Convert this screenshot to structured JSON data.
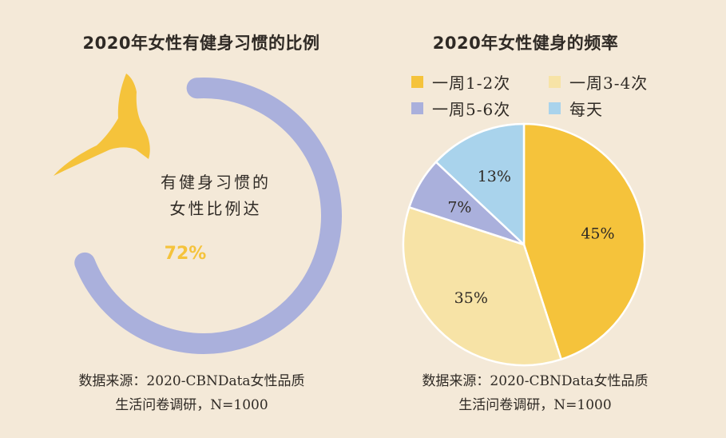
{
  "left_panel": {
    "title": "2020年女性有健身习惯的比例",
    "ring_text_line1": "有健身习惯的",
    "ring_text_line2": "女性比例达",
    "ring_value_label": "72%",
    "ring_value": 72,
    "ring_color": "#aab0dc",
    "figure_color": "#f5c33b",
    "source_line1": "数据来源：2020-CBNData女性品质",
    "source_line2": "生活问卷调研，N=1000"
  },
  "right_panel": {
    "title": "2020年女性健身的频率",
    "source_line1": "数据来源：2020-CBNData女性品质",
    "source_line2": "生活问卷调研，N=1000"
  },
  "chart_data": [
    {
      "type": "pie",
      "title": "2020年女性健身的频率",
      "legend_position": "top",
      "categories": [
        "一周1-2次",
        "一周3-4次",
        "一周5-6次",
        "每天"
      ],
      "values": [
        45,
        35,
        7,
        13
      ],
      "value_labels": [
        "45%",
        "35%",
        "7%",
        "13%"
      ],
      "colors": [
        "#f5c33b",
        "#f7e3a6",
        "#aab0dc",
        "#a9d3ec"
      ]
    }
  ]
}
